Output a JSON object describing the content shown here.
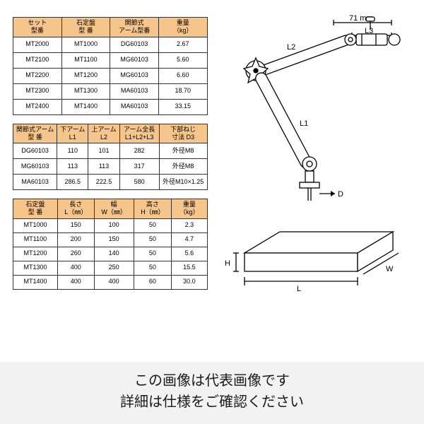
{
  "table1": {
    "headers": [
      "セット\n型番",
      "石定盤\n型 番",
      "関節式\nアーム型番",
      "重量\n（kg）"
    ],
    "rows": [
      [
        "MT2000",
        "MT1000",
        "DG60103",
        "2.67"
      ],
      [
        "MT2100",
        "MT1100",
        "MG60103",
        "5.60"
      ],
      [
        "MT2200",
        "MT1200",
        "MG60103",
        "6.60"
      ],
      [
        "MT2300",
        "MT1300",
        "MA60103",
        "18.70"
      ],
      [
        "MT2400",
        "MT1400",
        "MA60103",
        "33.15"
      ]
    ]
  },
  "table2": {
    "headers": [
      "関節式アーム\n型 番",
      "下アーム\nL1",
      "上アーム\nL2",
      "アーム全長\nL1+L2+L3",
      "下部ねじ\n寸法 D3"
    ],
    "rows": [
      [
        "DG60103",
        "110",
        "101",
        "282",
        "外径M8"
      ],
      [
        "MG60103",
        "113",
        "113",
        "317",
        "外径M8"
      ],
      [
        "MA60103",
        "286.5",
        "222.5",
        "580",
        "外径M10×1.25"
      ]
    ]
  },
  "table3": {
    "headers": [
      "石定盤\n型 番",
      "長さ\nL（㎜）",
      "幅\nW（㎜）",
      "高さ\nH（㎜）",
      "重量\n（kg）"
    ],
    "rows": [
      [
        "MT1000",
        "150",
        "100",
        "50",
        "2.3"
      ],
      [
        "MT1100",
        "200",
        "150",
        "50",
        "4.7"
      ],
      [
        "MT1200",
        "260",
        "140",
        "50",
        "5.6"
      ],
      [
        "MT1300",
        "400",
        "250",
        "50",
        "15.5"
      ],
      [
        "MT1400",
        "400",
        "400",
        "60",
        "30.0"
      ]
    ]
  },
  "diagram_labels": {
    "top_dim": "71 mm",
    "L3": "L3",
    "L2": "L2",
    "L1": "L1",
    "D": "D",
    "L": "L",
    "W": "W",
    "H": "H"
  },
  "banner": {
    "line1": "この画像は代表画像です",
    "line2": "詳細は仕様をご確認ください"
  },
  "colors": {
    "header_bg": "#f5c58b",
    "border": "#333333",
    "banner_bg": "#f2f2f2"
  }
}
